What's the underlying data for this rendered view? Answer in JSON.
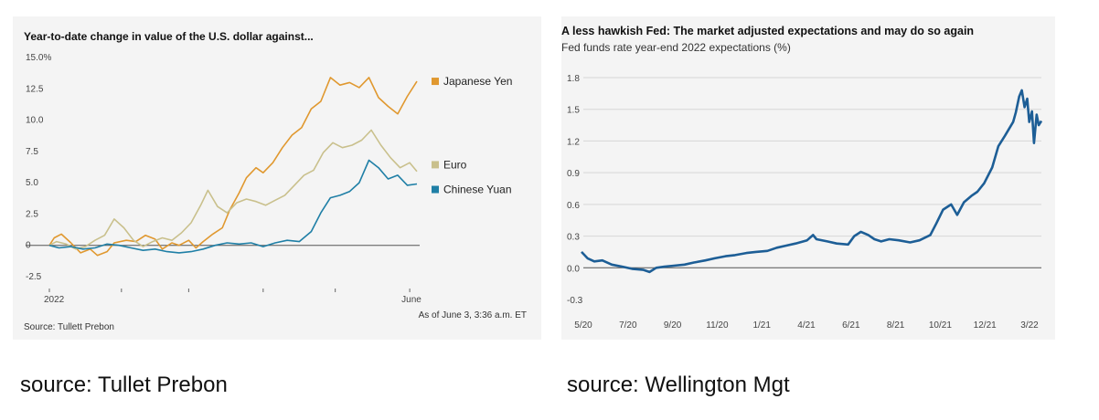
{
  "captions": {
    "left": "source: Tullet Prebon",
    "right": "source: Wellington Mgt"
  },
  "chart_data": [
    {
      "type": "line",
      "title": "Year-to-date change in value of the U.S. dollar against...",
      "xlabel": "",
      "ylabel": "",
      "x_tick_labels": [
        "2022",
        "June"
      ],
      "y_tick_labels": [
        "15.0%",
        "12.5",
        "10.0",
        "7.5",
        "5.0",
        "2.5",
        "0",
        "-2.5"
      ],
      "ylim": [
        -2.5,
        15.0
      ],
      "grid": false,
      "legend_position": "right",
      "note": "As of June 3, 3:36 a.m. ET",
      "source": "Source: Tullett Prebon",
      "colors": {
        "Japanese Yen": "#e0982f",
        "Euro": "#c9c08c",
        "Chinese Yuan": "#1f7fa6",
        "zero_line": "#555555"
      },
      "x_range": [
        "2022-01-01",
        "2022-06-03"
      ],
      "series": [
        {
          "name": "Japanese Yen",
          "points": [
            [
              "2022-01-01",
              0
            ],
            [
              "2022-01-03",
              0.6
            ],
            [
              "2022-01-06",
              0.9
            ],
            [
              "2022-01-10",
              0.2
            ],
            [
              "2022-01-14",
              -0.6
            ],
            [
              "2022-01-18",
              -0.3
            ],
            [
              "2022-01-21",
              -0.8
            ],
            [
              "2022-01-25",
              -0.5
            ],
            [
              "2022-01-28",
              0.2
            ],
            [
              "2022-02-02",
              0.4
            ],
            [
              "2022-02-06",
              0.3
            ],
            [
              "2022-02-10",
              0.8
            ],
            [
              "2022-02-14",
              0.5
            ],
            [
              "2022-02-17",
              -0.3
            ],
            [
              "2022-02-21",
              0.2
            ],
            [
              "2022-02-24",
              0.0
            ],
            [
              "2022-02-28",
              0.4
            ],
            [
              "2022-03-03",
              -0.2
            ],
            [
              "2022-03-06",
              0.3
            ],
            [
              "2022-03-10",
              0.9
            ],
            [
              "2022-03-14",
              1.4
            ],
            [
              "2022-03-17",
              2.8
            ],
            [
              "2022-03-21",
              4.2
            ],
            [
              "2022-03-24",
              5.4
            ],
            [
              "2022-03-28",
              6.2
            ],
            [
              "2022-03-31",
              5.8
            ],
            [
              "2022-04-04",
              6.6
            ],
            [
              "2022-04-08",
              7.8
            ],
            [
              "2022-04-12",
              8.8
            ],
            [
              "2022-04-16",
              9.4
            ],
            [
              "2022-04-20",
              10.9
            ],
            [
              "2022-04-24",
              11.5
            ],
            [
              "2022-04-28",
              13.4
            ],
            [
              "2022-05-02",
              12.8
            ],
            [
              "2022-05-06",
              13.0
            ],
            [
              "2022-05-10",
              12.6
            ],
            [
              "2022-05-14",
              13.4
            ],
            [
              "2022-05-18",
              11.8
            ],
            [
              "2022-05-22",
              11.1
            ],
            [
              "2022-05-26",
              10.5
            ],
            [
              "2022-05-30",
              11.9
            ],
            [
              "2022-06-03",
              13.1
            ]
          ]
        },
        {
          "name": "Euro",
          "points": [
            [
              "2022-01-01",
              0
            ],
            [
              "2022-01-04",
              0.3
            ],
            [
              "2022-01-08",
              0.1
            ],
            [
              "2022-01-12",
              -0.3
            ],
            [
              "2022-01-16",
              -0.1
            ],
            [
              "2022-01-20",
              0.4
            ],
            [
              "2022-01-24",
              0.8
            ],
            [
              "2022-01-28",
              2.1
            ],
            [
              "2022-02-01",
              1.4
            ],
            [
              "2022-02-05",
              0.4
            ],
            [
              "2022-02-09",
              -0.1
            ],
            [
              "2022-02-13",
              0.3
            ],
            [
              "2022-02-17",
              0.6
            ],
            [
              "2022-02-21",
              0.4
            ],
            [
              "2022-02-25",
              1.0
            ],
            [
              "2022-03-01",
              1.8
            ],
            [
              "2022-03-05",
              3.2
            ],
            [
              "2022-03-08",
              4.4
            ],
            [
              "2022-03-12",
              3.1
            ],
            [
              "2022-03-16",
              2.6
            ],
            [
              "2022-03-20",
              3.4
            ],
            [
              "2022-03-24",
              3.7
            ],
            [
              "2022-03-28",
              3.5
            ],
            [
              "2022-04-01",
              3.2
            ],
            [
              "2022-04-05",
              3.6
            ],
            [
              "2022-04-09",
              4.0
            ],
            [
              "2022-04-13",
              4.8
            ],
            [
              "2022-04-17",
              5.6
            ],
            [
              "2022-04-21",
              6.0
            ],
            [
              "2022-04-25",
              7.4
            ],
            [
              "2022-04-29",
              8.2
            ],
            [
              "2022-05-03",
              7.8
            ],
            [
              "2022-05-07",
              8.0
            ],
            [
              "2022-05-11",
              8.4
            ],
            [
              "2022-05-15",
              9.2
            ],
            [
              "2022-05-19",
              8.0
            ],
            [
              "2022-05-23",
              7.0
            ],
            [
              "2022-05-27",
              6.2
            ],
            [
              "2022-05-31",
              6.6
            ],
            [
              "2022-06-03",
              5.9
            ]
          ]
        },
        {
          "name": "Chinese Yuan",
          "points": [
            [
              "2022-01-01",
              0
            ],
            [
              "2022-01-05",
              -0.2
            ],
            [
              "2022-01-10",
              -0.1
            ],
            [
              "2022-01-15",
              -0.3
            ],
            [
              "2022-01-20",
              -0.2
            ],
            [
              "2022-01-25",
              0.1
            ],
            [
              "2022-01-30",
              0.0
            ],
            [
              "2022-02-04",
              -0.2
            ],
            [
              "2022-02-09",
              -0.4
            ],
            [
              "2022-02-14",
              -0.3
            ],
            [
              "2022-02-19",
              -0.5
            ],
            [
              "2022-02-24",
              -0.6
            ],
            [
              "2022-03-01",
              -0.5
            ],
            [
              "2022-03-06",
              -0.3
            ],
            [
              "2022-03-11",
              0.0
            ],
            [
              "2022-03-16",
              0.2
            ],
            [
              "2022-03-21",
              0.1
            ],
            [
              "2022-03-26",
              0.2
            ],
            [
              "2022-03-31",
              -0.1
            ],
            [
              "2022-04-05",
              0.2
            ],
            [
              "2022-04-10",
              0.4
            ],
            [
              "2022-04-15",
              0.3
            ],
            [
              "2022-04-20",
              1.1
            ],
            [
              "2022-04-24",
              2.6
            ],
            [
              "2022-04-28",
              3.8
            ],
            [
              "2022-05-02",
              4.0
            ],
            [
              "2022-05-06",
              4.3
            ],
            [
              "2022-05-10",
              5.0
            ],
            [
              "2022-05-14",
              6.8
            ],
            [
              "2022-05-18",
              6.2
            ],
            [
              "2022-05-22",
              5.3
            ],
            [
              "2022-05-26",
              5.6
            ],
            [
              "2022-05-30",
              4.8
            ],
            [
              "2022-06-03",
              4.9
            ]
          ]
        }
      ]
    },
    {
      "type": "line",
      "title": "A less hawkish Fed: The market adjusted expectations and may do so again",
      "subtitle": "Fed funds rate year-end 2022 expectations (%)",
      "xlabel": "",
      "ylabel": "",
      "x_tick_labels": [
        "5/20",
        "7/20",
        "9/20",
        "11/20",
        "1/21",
        "4/21",
        "6/21",
        "8/21",
        "10/21",
        "12/21",
        "3/22"
      ],
      "y_tick_labels": [
        "1.8",
        "1.5",
        "1.2",
        "0.9",
        "0.6",
        "0.3",
        "0.0",
        "-0.3"
      ],
      "ylim": [
        -0.3,
        1.8
      ],
      "grid": true,
      "colors": {
        "line": "#1d5e96",
        "zero_line": "#555555",
        "grid": "#d6d6d6"
      },
      "x_range": [
        "2020-05-01",
        "2022-03-15"
      ],
      "series": [
        {
          "points": [
            [
              "2020-05-01",
              0.15
            ],
            [
              "2020-05-10",
              0.09
            ],
            [
              "2020-05-20",
              0.06
            ],
            [
              "2020-06-01",
              0.07
            ],
            [
              "2020-06-15",
              0.03
            ],
            [
              "2020-07-01",
              0.01
            ],
            [
              "2020-07-15",
              -0.01
            ],
            [
              "2020-08-01",
              -0.02
            ],
            [
              "2020-08-10",
              -0.04
            ],
            [
              "2020-08-20",
              0.0
            ],
            [
              "2020-09-01",
              0.01
            ],
            [
              "2020-09-15",
              0.02
            ],
            [
              "2020-10-01",
              0.03
            ],
            [
              "2020-10-15",
              0.05
            ],
            [
              "2020-11-01",
              0.07
            ],
            [
              "2020-11-15",
              0.09
            ],
            [
              "2020-12-01",
              0.11
            ],
            [
              "2020-12-15",
              0.12
            ],
            [
              "2021-01-01",
              0.14
            ],
            [
              "2021-01-15",
              0.15
            ],
            [
              "2021-02-01",
              0.16
            ],
            [
              "2021-02-15",
              0.19
            ],
            [
              "2021-03-01",
              0.21
            ],
            [
              "2021-03-15",
              0.23
            ],
            [
              "2021-04-01",
              0.26
            ],
            [
              "2021-04-10",
              0.31
            ],
            [
              "2021-04-15",
              0.27
            ],
            [
              "2021-05-01",
              0.25
            ],
            [
              "2021-05-15",
              0.23
            ],
            [
              "2021-06-01",
              0.22
            ],
            [
              "2021-06-10",
              0.3
            ],
            [
              "2021-06-20",
              0.34
            ],
            [
              "2021-07-01",
              0.31
            ],
            [
              "2021-07-10",
              0.27
            ],
            [
              "2021-07-20",
              0.25
            ],
            [
              "2021-08-01",
              0.27
            ],
            [
              "2021-08-15",
              0.26
            ],
            [
              "2021-09-01",
              0.24
            ],
            [
              "2021-09-15",
              0.26
            ],
            [
              "2021-10-01",
              0.31
            ],
            [
              "2021-10-10",
              0.42
            ],
            [
              "2021-10-20",
              0.55
            ],
            [
              "2021-11-01",
              0.6
            ],
            [
              "2021-11-10",
              0.5
            ],
            [
              "2021-11-20",
              0.62
            ],
            [
              "2021-12-01",
              0.68
            ],
            [
              "2021-12-10",
              0.72
            ],
            [
              "2021-12-20",
              0.8
            ],
            [
              "2022-01-01",
              0.95
            ],
            [
              "2022-01-10",
              1.15
            ],
            [
              "2022-01-20",
              1.25
            ],
            [
              "2022-02-01",
              1.38
            ],
            [
              "2022-02-05",
              1.47
            ],
            [
              "2022-02-10",
              1.62
            ],
            [
              "2022-02-14",
              1.68
            ],
            [
              "2022-02-18",
              1.52
            ],
            [
              "2022-02-22",
              1.6
            ],
            [
              "2022-02-25",
              1.38
            ],
            [
              "2022-03-01",
              1.48
            ],
            [
              "2022-03-04",
              1.18
            ],
            [
              "2022-03-08",
              1.45
            ],
            [
              "2022-03-11",
              1.35
            ],
            [
              "2022-03-15",
              1.39
            ]
          ]
        }
      ]
    }
  ]
}
